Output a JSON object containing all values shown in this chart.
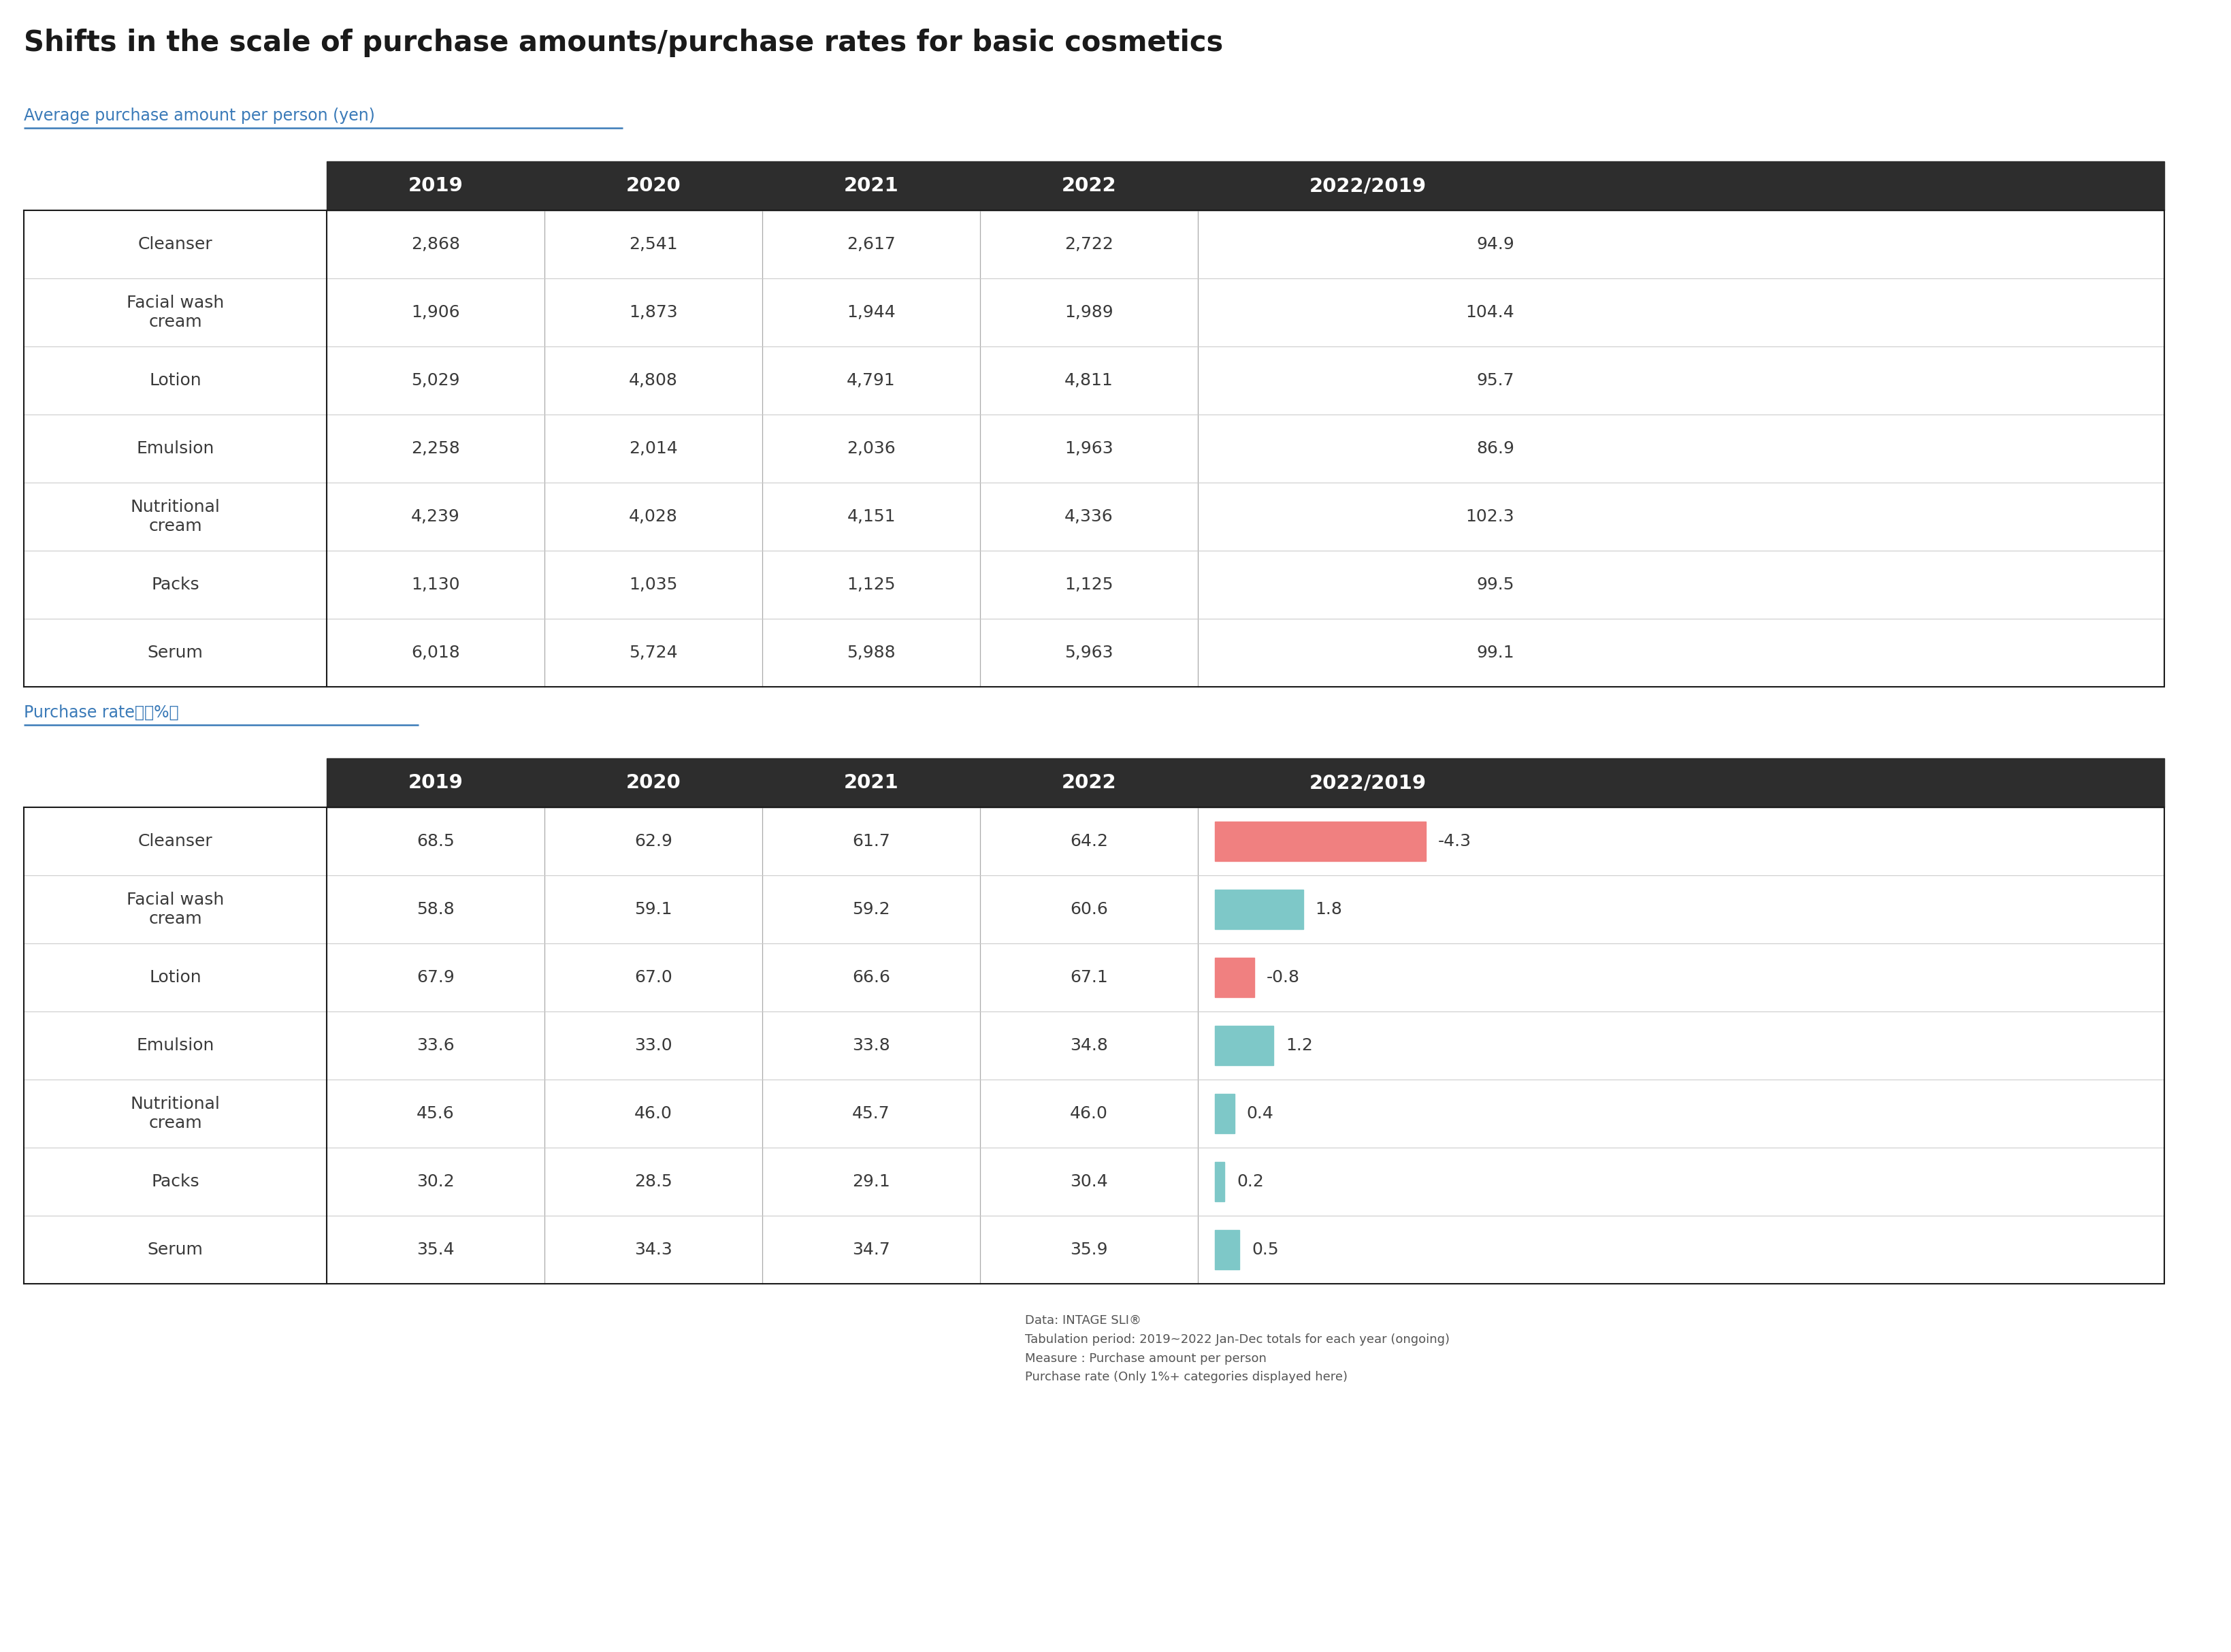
{
  "title": "Shifts in the scale of purchase amounts/purchase rates for basic cosmetics",
  "section1_label": "Average purchase amount per person (yen)",
  "section2_label": "Purchase rate　（%）",
  "years": [
    "2019",
    "2020",
    "2021",
    "2022",
    "2022/2019"
  ],
  "products": [
    "Cleanser",
    "Facial wash\ncream",
    "Lotion",
    "Emulsion",
    "Nutritional\ncream",
    "Packs",
    "Serum"
  ],
  "amount_data": [
    [
      2868,
      2541,
      2617,
      2722,
      94.9
    ],
    [
      1906,
      1873,
      1944,
      1989,
      104.4
    ],
    [
      5029,
      4808,
      4791,
      4811,
      95.7
    ],
    [
      2258,
      2014,
      2036,
      1963,
      86.9
    ],
    [
      4239,
      4028,
      4151,
      4336,
      102.3
    ],
    [
      1130,
      1035,
      1125,
      1125,
      99.5
    ],
    [
      6018,
      5724,
      5988,
      5963,
      99.1
    ]
  ],
  "rate_data": [
    [
      68.5,
      62.9,
      61.7,
      64.2,
      -4.3
    ],
    [
      58.8,
      59.1,
      59.2,
      60.6,
      1.8
    ],
    [
      67.9,
      67.0,
      66.6,
      67.1,
      -0.8
    ],
    [
      33.6,
      33.0,
      33.8,
      34.8,
      1.2
    ],
    [
      45.6,
      46.0,
      45.7,
      46.0,
      0.4
    ],
    [
      30.2,
      28.5,
      29.1,
      30.4,
      0.2
    ],
    [
      35.4,
      34.3,
      34.7,
      35.9,
      0.5
    ]
  ],
  "footnote": "Data: INTAGE SLI®\nTabulation period: 2019~2022 Jan-Dec totals for each year (ongoing)\nMeasure : Purchase amount per person\nPurchase rate (Only 1%+ categories displayed here)",
  "positive_color": "#7ec8c8",
  "negative_color": "#f08080",
  "header_bg": "#2d2d2d",
  "header_text": "#ffffff",
  "section_label_color": "#3a7ab8",
  "title_color": "#1a1a1a",
  "text_color": "#3a3a3a",
  "bg_color": "#ffffff",
  "table_border": "#1a1a1a",
  "divider_color": "#aaaaaa",
  "row_divider_color": "#cccccc"
}
